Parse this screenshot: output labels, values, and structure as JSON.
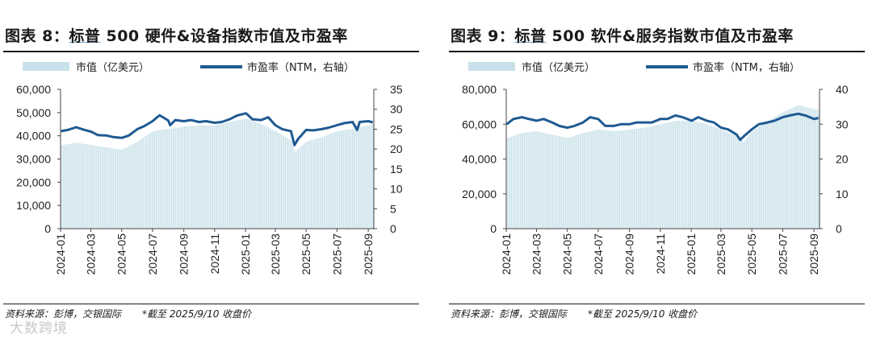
{
  "panels": [
    {
      "title_prefix": "图表 8：",
      "title_brand": "标普",
      "title_rest": " 500 硬件&设备指数市值及市盈率",
      "source_text": "资料来源：彭博，交银国际",
      "source_note": "*截至 2025/9/10 收盘价"
    },
    {
      "title_prefix": "图表 9：",
      "title_brand": "标普",
      "title_rest": " 500 软件&服务指数市值及市盈率",
      "source_text": "资料来源：彭博，交银国际",
      "source_note": "*截至 2025/9/10 收盘价"
    }
  ],
  "watermark": "大数跨境",
  "chart_data": [
    {
      "type": "bar+line",
      "title": "标普 500 硬件&设备指数市值及市盈率",
      "legend": [
        "市值（亿美元）",
        "市盈率（NTM，右轴）"
      ],
      "legend_position": "top",
      "grid": false,
      "x_ticks": [
        "2024-01",
        "2024-03",
        "2024-05",
        "2024-07",
        "2024-09",
        "2024-11",
        "2025-01",
        "2025-03",
        "2025-05",
        "2025-07",
        "2025-09"
      ],
      "y_left": {
        "min": 0,
        "max": 60000,
        "ticks": [
          0,
          10000,
          20000,
          30000,
          40000,
          50000,
          60000
        ],
        "tick_labels": [
          "0",
          "10,000",
          "20,000",
          "30,000",
          "40,000",
          "50,000",
          "60,000"
        ]
      },
      "y_right": {
        "min": 0,
        "max": 35,
        "ticks": [
          0,
          5,
          10,
          15,
          20,
          25,
          30,
          35
        ]
      },
      "series": [
        {
          "name": "市值（亿美元）",
          "axis": "left",
          "kind": "bar",
          "color": "#c9e1ea",
          "x": [
            "2024-01-02",
            "2024-02-01",
            "2024-03-01",
            "2024-04-01",
            "2024-05-01",
            "2024-06-01",
            "2024-07-01",
            "2024-08-01",
            "2024-09-01",
            "2024-10-01",
            "2024-11-01",
            "2024-12-01",
            "2025-01-02",
            "2025-02-01",
            "2025-03-01",
            "2025-04-01",
            "2025-04-08",
            "2025-05-01",
            "2025-06-01",
            "2025-07-01",
            "2025-08-01",
            "2025-09-10"
          ],
          "values": [
            36000,
            37000,
            36000,
            35000,
            34000,
            37500,
            42000,
            43000,
            44000,
            44500,
            44500,
            46000,
            47500,
            45000,
            42000,
            38000,
            33000,
            37500,
            39500,
            42000,
            43000,
            45000
          ]
        },
        {
          "name": "市盈率（NTM，右轴）",
          "axis": "right",
          "kind": "line",
          "color": "#1f5a92",
          "x": [
            "2024-01-02",
            "2024-01-15",
            "2024-02-01",
            "2024-02-15",
            "2024-03-01",
            "2024-03-15",
            "2024-04-01",
            "2024-04-15",
            "2024-05-01",
            "2024-05-15",
            "2024-06-01",
            "2024-06-15",
            "2024-07-01",
            "2024-07-15",
            "2024-08-01",
            "2024-08-05",
            "2024-08-15",
            "2024-09-01",
            "2024-09-15",
            "2024-10-01",
            "2024-10-15",
            "2024-11-01",
            "2024-11-15",
            "2024-12-01",
            "2024-12-15",
            "2025-01-02",
            "2025-01-15",
            "2025-02-01",
            "2025-02-15",
            "2025-03-01",
            "2025-03-15",
            "2025-04-01",
            "2025-04-08",
            "2025-04-15",
            "2025-05-01",
            "2025-05-15",
            "2025-06-01",
            "2025-06-15",
            "2025-07-01",
            "2025-07-15",
            "2025-08-01",
            "2025-08-10",
            "2025-08-15",
            "2025-09-01",
            "2025-09-10"
          ],
          "values": [
            24.5,
            24.8,
            25.5,
            24.9,
            24.4,
            23.5,
            23.4,
            23.0,
            22.8,
            23.4,
            25.0,
            25.8,
            27.0,
            28.5,
            27.2,
            26.0,
            27.3,
            27.0,
            27.3,
            26.8,
            27.0,
            26.6,
            26.8,
            27.5,
            28.4,
            29.0,
            27.5,
            27.3,
            28.0,
            26.0,
            25.0,
            24.5,
            21.0,
            22.5,
            24.8,
            24.7,
            25.0,
            25.4,
            26.0,
            26.5,
            26.8,
            24.8,
            26.8,
            27.0,
            26.7
          ]
        }
      ]
    },
    {
      "type": "bar+line",
      "title": "标普 500 软件&服务指数市值及市盈率",
      "legend": [
        "市值（亿美元）",
        "市盈率（NTM，右轴）"
      ],
      "legend_position": "top",
      "grid": false,
      "x_ticks": [
        "2024-01",
        "2024-03",
        "2024-05",
        "2024-07",
        "2024-09",
        "2024-11",
        "2025-01",
        "2025-03",
        "2025-05",
        "2025-07",
        "2025-09"
      ],
      "y_left": {
        "min": 0,
        "max": 80000,
        "ticks": [
          0,
          20000,
          40000,
          60000,
          80000
        ],
        "tick_labels": [
          "0",
          "20,000",
          "40,000",
          "60,000",
          "80,000"
        ]
      },
      "y_right": {
        "min": 0,
        "max": 40,
        "ticks": [
          0,
          10,
          20,
          30,
          40
        ]
      },
      "series": [
        {
          "name": "市值（亿美元）",
          "axis": "left",
          "kind": "bar",
          "color": "#c9e1ea",
          "x": [
            "2024-01-02",
            "2024-02-01",
            "2024-03-01",
            "2024-04-01",
            "2024-05-01",
            "2024-06-01",
            "2024-07-01",
            "2024-08-01",
            "2024-09-01",
            "2024-10-01",
            "2024-11-01",
            "2024-12-01",
            "2025-01-02",
            "2025-02-01",
            "2025-03-01",
            "2025-04-01",
            "2025-04-15",
            "2025-05-01",
            "2025-06-01",
            "2025-07-01",
            "2025-08-01",
            "2025-09-10"
          ],
          "values": [
            52000,
            55000,
            56000,
            54000,
            52000,
            55000,
            57000,
            56000,
            57000,
            58000,
            60000,
            62000,
            62000,
            60000,
            57000,
            53000,
            50000,
            56000,
            62000,
            67000,
            71000,
            68000
          ]
        },
        {
          "name": "市盈率（NTM，右轴）",
          "axis": "right",
          "kind": "line",
          "color": "#1f5a92",
          "x": [
            "2024-01-02",
            "2024-01-15",
            "2024-02-01",
            "2024-02-15",
            "2024-03-01",
            "2024-03-15",
            "2024-04-01",
            "2024-04-15",
            "2024-05-01",
            "2024-05-15",
            "2024-06-01",
            "2024-06-15",
            "2024-07-01",
            "2024-07-15",
            "2024-08-01",
            "2024-08-15",
            "2024-09-01",
            "2024-09-15",
            "2024-10-01",
            "2024-10-15",
            "2024-11-01",
            "2024-11-15",
            "2024-12-01",
            "2024-12-15",
            "2025-01-02",
            "2025-01-15",
            "2025-02-01",
            "2025-02-15",
            "2025-03-01",
            "2025-03-15",
            "2025-04-01",
            "2025-04-08",
            "2025-04-15",
            "2025-05-01",
            "2025-05-15",
            "2025-06-01",
            "2025-06-15",
            "2025-07-01",
            "2025-07-15",
            "2025-08-01",
            "2025-08-15",
            "2025-09-01",
            "2025-09-10"
          ],
          "values": [
            30.0,
            31.5,
            32.0,
            31.5,
            31.0,
            31.5,
            30.5,
            29.5,
            29.0,
            29.5,
            30.5,
            32.0,
            31.5,
            29.5,
            29.5,
            30.0,
            30.0,
            30.5,
            30.5,
            30.5,
            31.5,
            31.5,
            32.5,
            32.0,
            31.0,
            32.0,
            31.0,
            30.5,
            29.0,
            28.5,
            27.0,
            25.5,
            26.5,
            28.5,
            30.0,
            30.5,
            31.0,
            32.0,
            32.5,
            33.0,
            32.5,
            31.5,
            31.8
          ]
        }
      ]
    }
  ]
}
